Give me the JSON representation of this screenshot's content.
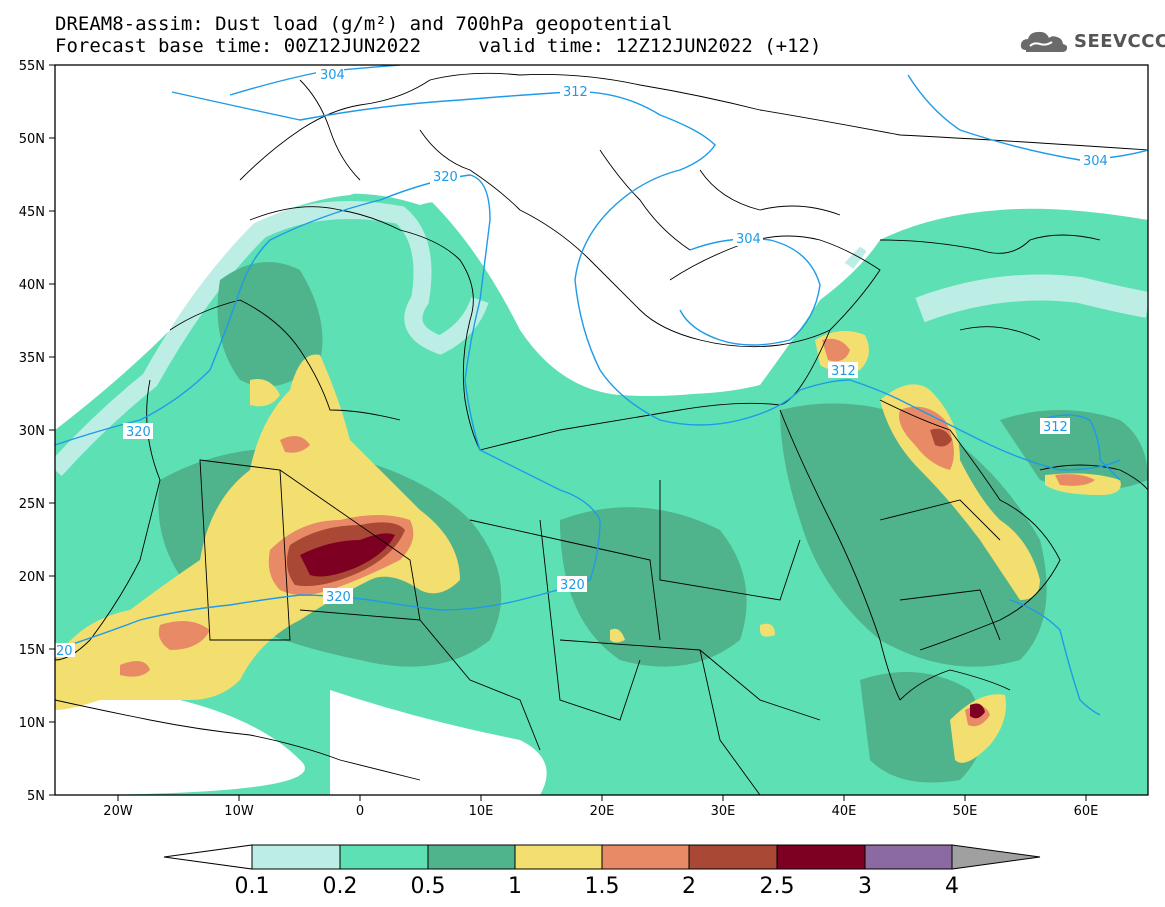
{
  "header": {
    "line1": "DREAM8-assim: Dust load (g/m²) and 700hPa geopotential",
    "line2": "Forecast base time: 00Z12JUN2022     valid time: 12Z12JUN2022 (+12)"
  },
  "logo": {
    "text": "SEEVCCC",
    "icon": "cloud-icon"
  },
  "axes": {
    "lat_labels": [
      "55N",
      "50N",
      "45N",
      "40N",
      "35N",
      "30N",
      "25N",
      "20N",
      "15N",
      "10N",
      "5N"
    ],
    "lon_labels": [
      "20W",
      "10W",
      "0",
      "10E",
      "20E",
      "30E",
      "40E",
      "50E",
      "60E"
    ]
  },
  "colorbar": {
    "ticks": [
      "0.1",
      "0.2",
      "0.5",
      "1",
      "1.5",
      "2",
      "2.5",
      "3",
      "4"
    ],
    "colors": [
      "#bdeee5",
      "#5ee0b5",
      "#4fb38c",
      "#f2df6f",
      "#e88a66",
      "#a94835",
      "#7d0022",
      "#8a6aa0",
      "#a0a0a0"
    ]
  },
  "contour_labels": {
    "c304_a": "304",
    "c312_a": "312",
    "c320_a": "320",
    "c304_b": "304",
    "c304_c": "304",
    "c312_b": "312",
    "c312_c": "312",
    "c320_b": "320",
    "c320_c": "320",
    "c320_d": "320",
    "c320_e": "20"
  },
  "colors": {
    "geopotential_line": "#1e9be8",
    "frame": "#000000"
  }
}
